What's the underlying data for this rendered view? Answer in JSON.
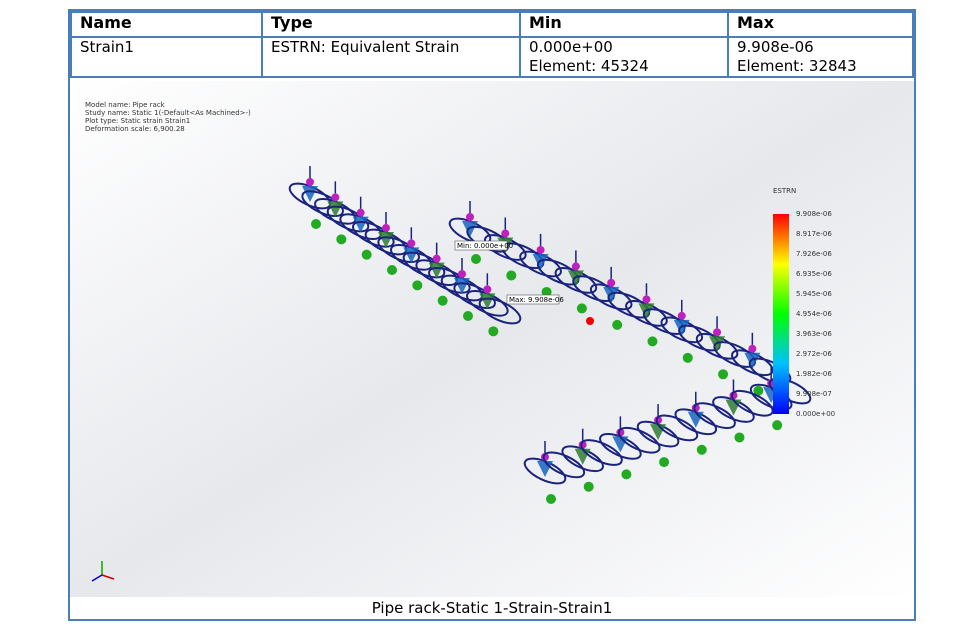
{
  "table": {
    "headers": [
      "Name",
      "Type",
      "Min",
      "Max"
    ],
    "rows": [
      [
        "Strain1",
        "ESTRN: Equivalent Strain",
        [
          "0.000e+00",
          "Element: 45324"
        ],
        [
          "9.908e-06",
          "Element: 32843"
        ]
      ]
    ]
  },
  "plot_info": [
    "Model name: Pipe rack",
    "Study name: Static 1(-Default<As Machined>-)",
    "Plot type: Static strain Strain1",
    "Deformation scale: 6,900.28"
  ],
  "legend": {
    "title": "ESTRN",
    "labels": [
      "9.908e-06",
      "8.917e-06",
      "7.926e-06",
      "6.935e-06",
      "5.945e-06",
      "4.954e-06",
      "3.963e-06",
      "2.972e-06",
      "1.982e-06",
      "9.908e-07",
      "0.000e+00"
    ]
  },
  "annotations": {
    "min": "Min: 0.000e+00",
    "max": "Max: 9.908e-06"
  },
  "caption": "Pipe rack-Static 1-Strain-Strain1"
}
